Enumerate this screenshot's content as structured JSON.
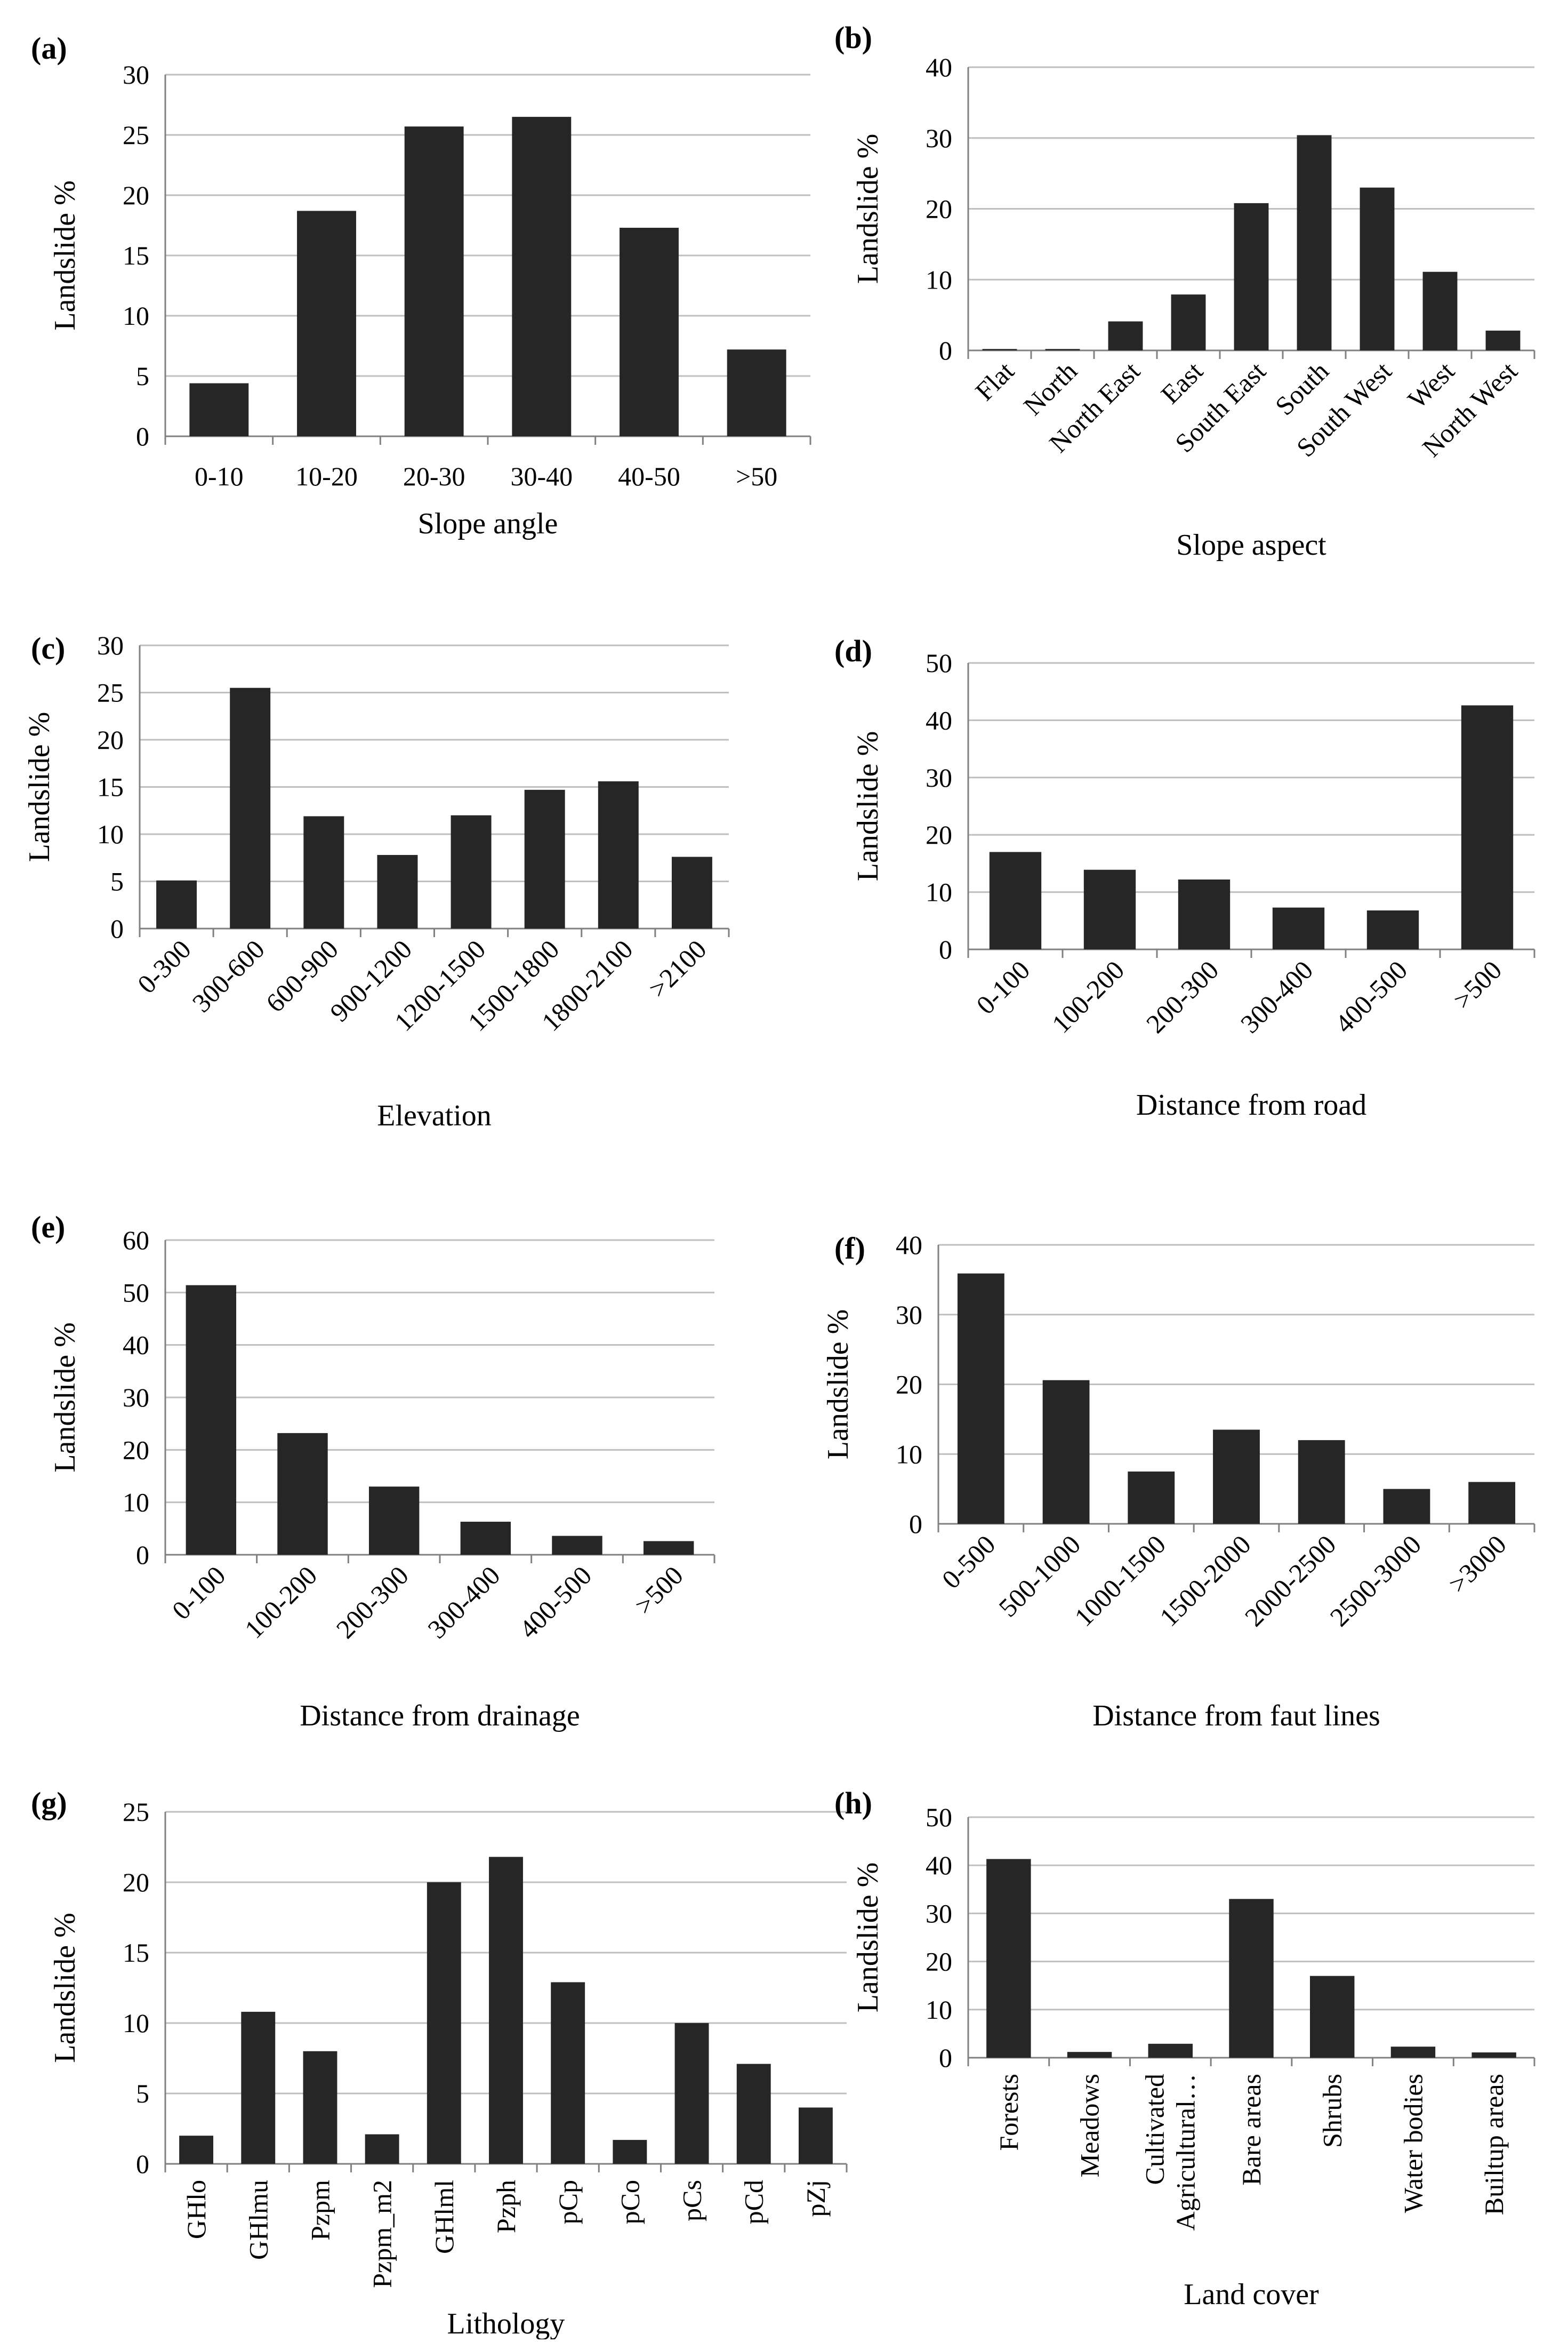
{
  "chart_data": [
    {
      "panel": "(a)",
      "type": "bar",
      "title": "",
      "xlabel": "Slope angle",
      "ylabel": "Landslide %",
      "ylim": [
        0,
        30
      ],
      "yticks": [
        0,
        5,
        10,
        15,
        20,
        25,
        30
      ],
      "grid": true,
      "rotate": false,
      "categories": [
        "0-10",
        "10-20",
        "20-30",
        "30-40",
        "40-50",
        ">50"
      ],
      "values": [
        4.4,
        18.7,
        25.7,
        26.5,
        17.3,
        7.2
      ],
      "tick_labels": [
        "0",
        "5",
        "10",
        "15",
        "20",
        "25",
        "30"
      ]
    },
    {
      "panel": "(b)",
      "type": "bar",
      "title": "",
      "xlabel": "Slope aspect",
      "ylabel": "Landslide %",
      "ylim": [
        0,
        40
      ],
      "yticks": [
        0,
        10,
        20,
        30,
        40
      ],
      "grid": true,
      "rotate": true,
      "categories": [
        "Flat",
        "North",
        "North East",
        "East",
        "South East",
        "South",
        "South West",
        "West",
        "North West"
      ],
      "values": [
        0.2,
        0.2,
        4.1,
        7.9,
        20.8,
        30.4,
        23.0,
        11.1,
        2.8
      ],
      "tick_labels": [
        "0",
        "10",
        "20",
        "30",
        "40"
      ]
    },
    {
      "panel": "(c)",
      "type": "bar",
      "title": "",
      "xlabel": "Elevation",
      "ylabel": "Landslide %",
      "ylim": [
        0,
        30
      ],
      "yticks": [
        0,
        5,
        10,
        15,
        20,
        25,
        30
      ],
      "grid": true,
      "rotate": true,
      "categories": [
        "0-300",
        "300-600",
        "600-900",
        "900-1200",
        "1200-1500",
        "1500-1800",
        "1800-2100",
        ">2100"
      ],
      "values": [
        5.1,
        25.5,
        11.9,
        7.8,
        12.0,
        14.7,
        15.6,
        7.6
      ],
      "tick_labels": [
        "0",
        "5",
        "10",
        "15",
        "20",
        "25",
        "30"
      ]
    },
    {
      "panel": "(d)",
      "type": "bar",
      "title": "",
      "xlabel": "Distance from road",
      "ylabel": "Landslide %",
      "ylim": [
        0,
        50
      ],
      "yticks": [
        0,
        10,
        20,
        30,
        40,
        50
      ],
      "grid": true,
      "rotate": true,
      "categories": [
        "0-100",
        "100-200",
        "200-300",
        "300-400",
        "400-500",
        ">500"
      ],
      "values": [
        17.0,
        13.9,
        12.2,
        7.3,
        6.8,
        42.6
      ],
      "tick_labels": [
        "0",
        "10",
        "20",
        "30",
        "40",
        "50"
      ]
    },
    {
      "panel": "(e)",
      "type": "bar",
      "title": "",
      "xlabel": "Distance from drainage",
      "ylabel": "Landslide %",
      "ylim": [
        0,
        60
      ],
      "yticks": [
        0,
        10,
        20,
        30,
        40,
        50,
        60
      ],
      "grid": true,
      "rotate": true,
      "categories": [
        "0-100",
        "100-200",
        "200-300",
        "300-400",
        "400-500",
        ">500"
      ],
      "values": [
        51.4,
        23.2,
        13.0,
        6.3,
        3.6,
        2.6
      ],
      "tick_labels": [
        "0",
        "10",
        "20",
        "30",
        "40",
        "50",
        "60"
      ]
    },
    {
      "panel": "(f)",
      "type": "bar",
      "title": "",
      "xlabel": "Distance from faut lines",
      "ylabel": "Landslide %",
      "ylim": [
        0,
        40
      ],
      "yticks": [
        0,
        10,
        20,
        30,
        40
      ],
      "grid": true,
      "rotate": true,
      "categories": [
        "0-500",
        "500-1000",
        "1000-1500",
        "1500-2000",
        "2000-2500",
        "2500-3000",
        ">3000"
      ],
      "values": [
        35.9,
        20.6,
        7.5,
        13.5,
        12.0,
        5.0,
        6.0
      ],
      "tick_labels": [
        "0",
        "10",
        "20",
        "30",
        "40"
      ]
    },
    {
      "panel": "(g)",
      "type": "bar",
      "title": "",
      "xlabel": "Lithology",
      "ylabel": "Landslide %",
      "ylim": [
        0,
        25
      ],
      "yticks": [
        0,
        5,
        10,
        15,
        20,
        25
      ],
      "grid": true,
      "rotate": "vertical",
      "categories": [
        "GHlo",
        "GHlmu",
        "Pzpm",
        "Pzpm_m2",
        "GHlml",
        "Pzph",
        "pCp",
        "pCo",
        "pCs",
        "pCd",
        "pZj"
      ],
      "values": [
        2.0,
        10.8,
        8.0,
        2.1,
        20.0,
        21.8,
        12.9,
        1.7,
        10.0,
        7.1,
        4.0
      ],
      "tick_labels": [
        "0",
        "5",
        "10",
        "15",
        "20",
        "25"
      ]
    },
    {
      "panel": "(h)",
      "type": "bar",
      "title": "",
      "xlabel": "Land cover",
      "ylabel": "Landslide %",
      "ylim": [
        0,
        50
      ],
      "yticks": [
        0,
        10,
        20,
        30,
        40,
        50
      ],
      "grid": true,
      "rotate": "vertical",
      "categories": [
        "Forests",
        "Meadows",
        "Cultivated Agricultural…",
        "Bare areas",
        "Shrubs",
        "Water bodies",
        "Builtup areas"
      ],
      "category_lines": [
        [
          "Forests"
        ],
        [
          "Meadows"
        ],
        [
          "Cultivated",
          "Agricultural…"
        ],
        [
          "Bare areas"
        ],
        [
          "Shrubs"
        ],
        [
          "Water bodies"
        ],
        [
          "Builtup areas"
        ]
      ],
      "values": [
        41.3,
        1.2,
        2.9,
        33.0,
        17.0,
        2.3,
        1.1
      ],
      "tick_labels": [
        "0",
        "10",
        "20",
        "30",
        "40",
        "50"
      ]
    }
  ]
}
